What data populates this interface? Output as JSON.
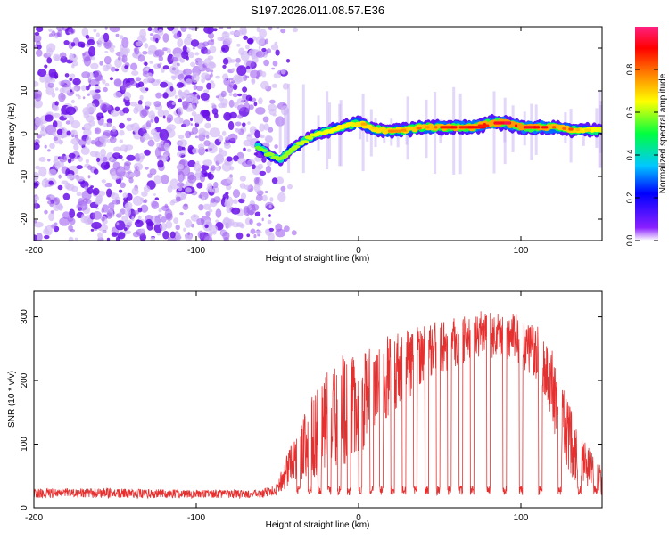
{
  "title": "S197.2026.011.08.57.E36",
  "chart_data": [
    {
      "type": "heatmap",
      "xlabel": "Height of straight line (km)",
      "ylabel": "Frequency (Hz)",
      "xlim": [
        -200,
        150
      ],
      "ylim": [
        -25,
        25
      ],
      "xticks": [
        -200,
        -100,
        0,
        100
      ],
      "xtick_labels": [
        "-200",
        "-100",
        "0",
        "100"
      ],
      "yticks": [
        -20,
        -10,
        0,
        10,
        20
      ],
      "ytick_labels": [
        "-20",
        "-10",
        "0",
        "10",
        "20"
      ],
      "colorbar": {
        "label": "Normalized spectral amplitude",
        "range": [
          0,
          1
        ],
        "ticks": [
          0.0,
          0.2,
          0.4,
          0.6,
          0.8
        ],
        "tick_labels": [
          "0.0",
          "0.2",
          "0.4",
          "0.6",
          "0.8"
        ],
        "colors": [
          "#ffffff",
          "#6a00ff",
          "#0000ff",
          "#00d0ff",
          "#00ff40",
          "#ffff00",
          "#ff8000",
          "#ff0000",
          "#ff2080"
        ]
      },
      "noise_region": {
        "x_range": [
          -200,
          -50
        ],
        "note": "random speckle, low amplitude"
      },
      "signal_ridge": {
        "x": [
          -62,
          -55,
          -48,
          -42,
          -35,
          -25,
          -15,
          -5,
          0,
          10,
          20,
          30,
          40,
          50,
          60,
          70,
          80,
          90,
          100,
          110,
          120,
          130,
          140,
          150
        ],
        "freq": [
          -3,
          -5,
          -6,
          -4,
          -2,
          0,
          1,
          2,
          2.5,
          1,
          0.5,
          1,
          1.5,
          1.5,
          1.5,
          1.5,
          2.5,
          2.5,
          1.5,
          1.5,
          1.5,
          1,
          0.8,
          0.8
        ],
        "amplitude": [
          0.2,
          0.3,
          0.3,
          0.3,
          0.4,
          0.45,
          0.5,
          0.55,
          0.6,
          0.6,
          0.65,
          0.65,
          0.7,
          0.75,
          0.8,
          0.8,
          0.8,
          0.85,
          0.85,
          0.85,
          0.75,
          0.7,
          0.55,
          0.45
        ]
      }
    },
    {
      "type": "line",
      "xlabel": "Height of straight line (km)",
      "ylabel": "SNR (10 * v/v)",
      "xlim": [
        -200,
        150
      ],
      "ylim": [
        0,
        340
      ],
      "xticks": [
        -200,
        -100,
        0,
        100
      ],
      "xtick_labels": [
        "-200",
        "-100",
        "0",
        "100"
      ],
      "yticks": [
        0,
        100,
        200,
        300
      ],
      "ytick_labels": [
        "0",
        "100",
        "200",
        "300"
      ],
      "color": "#e53030",
      "envelope": {
        "x": [
          -200,
          -150,
          -100,
          -60,
          -50,
          -40,
          -30,
          -20,
          -10,
          0,
          10,
          20,
          30,
          40,
          50,
          60,
          70,
          80,
          90,
          100,
          110,
          115,
          120,
          125,
          130,
          140,
          145,
          150
        ],
        "upper": [
          30,
          30,
          28,
          28,
          40,
          110,
          170,
          210,
          235,
          240,
          250,
          275,
          285,
          290,
          295,
          300,
          300,
          310,
          305,
          295,
          280,
          265,
          240,
          200,
          160,
          100,
          80,
          60
        ],
        "base": [
          15,
          15,
          15,
          15,
          20,
          40,
          45,
          50,
          60,
          80,
          110,
          150,
          170,
          200,
          210,
          220,
          230,
          235,
          235,
          220,
          200,
          170,
          120,
          80,
          50,
          30,
          20,
          20
        ]
      },
      "dropouts_x": [
        -37,
        -30,
        -24,
        -18,
        -12,
        -6,
        1,
        8,
        14,
        21,
        28,
        35,
        42,
        49,
        56,
        63,
        70,
        80,
        90,
        100,
        112,
        124,
        136,
        146
      ],
      "dropout_level": 20
    }
  ]
}
